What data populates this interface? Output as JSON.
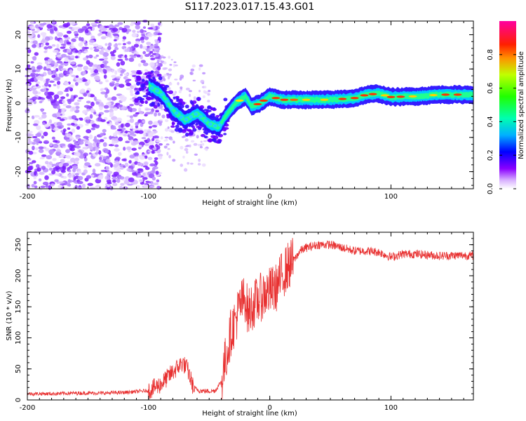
{
  "title": "S117.2023.017.15.43.G01",
  "chart_data": [
    {
      "type": "heatmap",
      "xlabel": "Height of straight line (km)",
      "ylabel": "Frequency (Hz)",
      "xlim": [
        -200,
        168
      ],
      "ylim": [
        -25,
        24
      ],
      "x_ticks": [
        "-200",
        "-100",
        "0",
        "100"
      ],
      "y_ticks": [
        "-20",
        "-10",
        "0",
        "10",
        "20"
      ],
      "colorbar": {
        "label": "Normalized spectral amplitude",
        "range": [
          0,
          1
        ],
        "ticks": [
          "0.0",
          "0.2",
          "0.4",
          "0.6",
          "0.8"
        ]
      },
      "ridge_frequency": [
        {
          "x": -100,
          "y": 5
        },
        {
          "x": -90,
          "y": 3
        },
        {
          "x": -80,
          "y": -2
        },
        {
          "x": -70,
          "y": -5
        },
        {
          "x": -60,
          "y": -3
        },
        {
          "x": -50,
          "y": -6
        },
        {
          "x": -42,
          "y": -7
        },
        {
          "x": -35,
          "y": -3
        },
        {
          "x": -28,
          "y": 0
        },
        {
          "x": -20,
          "y": 2
        },
        {
          "x": -15,
          "y": -1
        },
        {
          "x": -8,
          "y": 0
        },
        {
          "x": 0,
          "y": 2
        },
        {
          "x": 10,
          "y": 1
        },
        {
          "x": 30,
          "y": 1
        },
        {
          "x": 50,
          "y": 1
        },
        {
          "x": 70,
          "y": 1.5
        },
        {
          "x": 80,
          "y": 2.5
        },
        {
          "x": 90,
          "y": 2.8
        },
        {
          "x": 100,
          "y": 1.8
        },
        {
          "x": 120,
          "y": 2
        },
        {
          "x": 140,
          "y": 2.5
        },
        {
          "x": 168,
          "y": 2.5
        }
      ]
    },
    {
      "type": "line",
      "xlabel": "Height of straight line (km)",
      "ylabel": "SNR (10 * v/v)",
      "xlim": [
        -200,
        168
      ],
      "ylim": [
        0,
        270
      ],
      "x_ticks": [
        "-200",
        "-100",
        "0",
        "100"
      ],
      "y_ticks": [
        "0",
        "50",
        "100",
        "150",
        "200",
        "250"
      ],
      "color": "#e83030",
      "series": [
        {
          "x": [
            -200,
            -180,
            -160,
            -140,
            -120,
            -100,
            -90,
            -80,
            -72,
            -68,
            -63,
            -58,
            -52,
            -45,
            -40,
            -35,
            -32,
            -28,
            -25,
            -22,
            -20,
            -18,
            -15,
            -10,
            -5,
            0,
            5,
            10,
            15,
            20,
            25,
            30,
            40,
            50,
            60,
            70,
            80,
            90,
            100,
            110,
            120,
            140,
            160,
            168
          ],
          "y": [
            10,
            10,
            11,
            11,
            12,
            15,
            25,
            45,
            60,
            50,
            20,
            15,
            14,
            15,
            30,
            80,
            110,
            130,
            150,
            160,
            165,
            140,
            150,
            160,
            170,
            175,
            180,
            200,
            215,
            225,
            240,
            245,
            250,
            250,
            245,
            240,
            240,
            238,
            230,
            235,
            235,
            232,
            233,
            232
          ]
        }
      ]
    }
  ]
}
